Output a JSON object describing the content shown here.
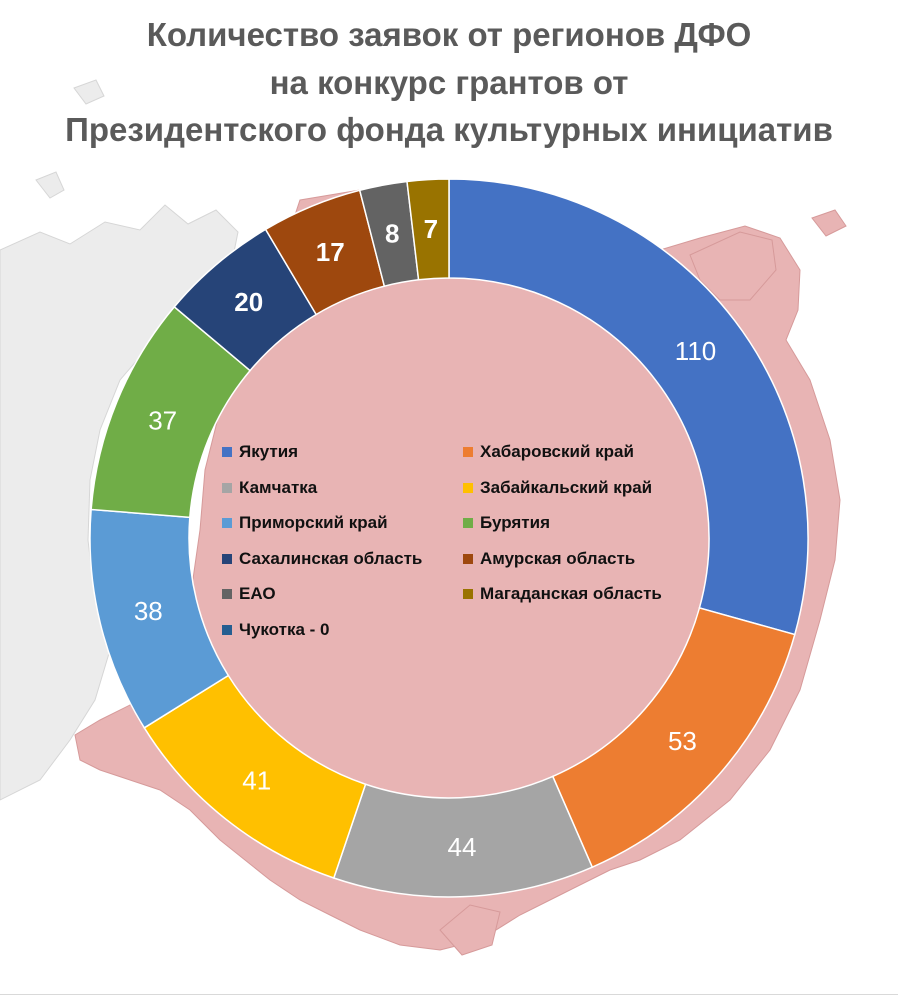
{
  "chart_data": {
    "type": "donut",
    "title_lines": [
      "Количество заявок от регионов ДФО",
      "на конкурс грантов от",
      "Президентского фонда культурных инициатив"
    ],
    "series": [
      {
        "name": "Якутия",
        "value": 110,
        "label": "110",
        "color": "#4472C4"
      },
      {
        "name": "Хабаровский край",
        "value": 53,
        "label": "53",
        "color": "#ED7D31"
      },
      {
        "name": "Камчатка",
        "value": 44,
        "label": "44",
        "color": "#A5A5A5"
      },
      {
        "name": "Забайкальский край",
        "value": 41,
        "label": "41",
        "color": "#FFC000"
      },
      {
        "name": "Приморский край",
        "value": 38,
        "label": "38",
        "color": "#5B9BD5"
      },
      {
        "name": "Бурятия",
        "value": 37,
        "label": "37",
        "color": "#70AD47"
      },
      {
        "name": "Сахалинская область",
        "value": 20,
        "label": "20",
        "color": "#264478"
      },
      {
        "name": "Амурская область",
        "value": 17,
        "label": "17",
        "color": "#9E480E"
      },
      {
        "name": "ЕАО",
        "value": 8,
        "label": "8",
        "color": "#636363"
      },
      {
        "name": "Магаданская область",
        "value": 7,
        "label": "7",
        "color": "#997300"
      },
      {
        "name": "Чукотка - 0",
        "value": 0,
        "label": "",
        "color": "#255E91"
      }
    ],
    "legend_order": [
      "Якутия",
      "Хабаровский край",
      "Камчатка",
      "Забайкальский край",
      "Приморский край",
      "Бурятия",
      "Сахалинская область",
      "Амурская область",
      "ЕАО",
      "Магаданская область",
      "Чукотка - 0"
    ],
    "legend_placement": "center",
    "background": "map of the Russian Far East"
  }
}
